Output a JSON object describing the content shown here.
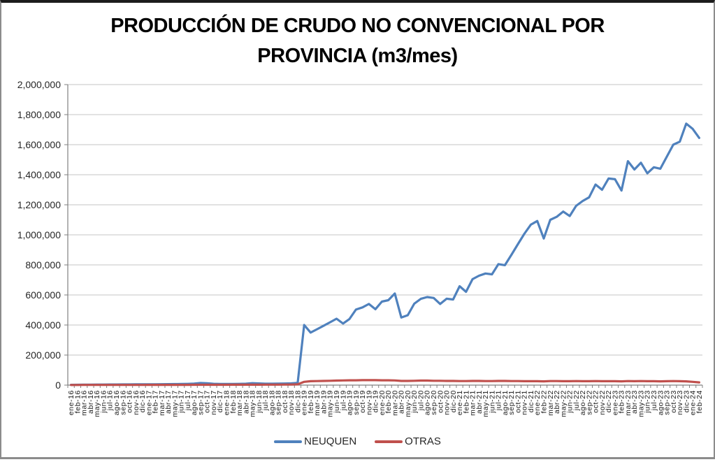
{
  "title": {
    "line1": "PRODUCCIÓN DE CRUDO NO CONVENCIONAL POR",
    "line2": "PROVINCIA (m3/mes)"
  },
  "colors": {
    "neuquen": "#4F81BD",
    "otras": "#C0504D",
    "gridline": "#C6C6C6",
    "axis": "#808080",
    "tick_text": "#1a1a1a",
    "y_label_text": "#262626"
  },
  "legend": {
    "items": [
      {
        "label": "NEUQUEN",
        "color": "#4F81BD"
      },
      {
        "label": "OTRAS",
        "color": "#C0504D"
      }
    ]
  },
  "y_axis": {
    "tick_labels": [
      "0",
      "200,000",
      "400,000",
      "600,000",
      "800,000",
      "1,000,000",
      "1,200,000",
      "1,400,000",
      "1,600,000",
      "1,800,000",
      "2,000,000"
    ],
    "min": 0,
    "max": 2000000,
    "step": 200000
  },
  "chart_data": {
    "type": "line",
    "title": "PRODUCCIÓN DE CRUDO NO CONVENCIONAL POR PROVINCIA (m3/mes)",
    "xlabel": "",
    "ylabel": "",
    "ylim": [
      0,
      2000000
    ],
    "grid": true,
    "legend_position": "bottom",
    "categories": [
      "ene-16",
      "feb-16",
      "mar-16",
      "abr-16",
      "may-16",
      "jun-16",
      "jul-16",
      "ago-16",
      "sep-16",
      "oct-16",
      "nov-16",
      "dic-16",
      "ene-17",
      "feb-17",
      "mar-17",
      "abr-17",
      "may-17",
      "jun-17",
      "jul-17",
      "ago-17",
      "sep-17",
      "oct-17",
      "nov-17",
      "dic-17",
      "ene-18",
      "feb-18",
      "mar-18",
      "abr-18",
      "may-18",
      "jun-18",
      "jul-18",
      "ago-18",
      "sep-18",
      "oct-18",
      "nov-18",
      "dic-18",
      "ene-19",
      "feb-19",
      "mar-19",
      "abr-19",
      "may-19",
      "jun-19",
      "jul-19",
      "ago-19",
      "sep-19",
      "oct-19",
      "nov-19",
      "dic-19",
      "ene-20",
      "feb-20",
      "mar-20",
      "abr-20",
      "may-20",
      "jun-20",
      "jul-20",
      "ago-20",
      "sep-20",
      "oct-20",
      "nov-20",
      "dic-20",
      "ene-21",
      "feb-21",
      "mar-21",
      "abr-21",
      "may-21",
      "jun-21",
      "jul-21",
      "ago-21",
      "sep-21",
      "oct-21",
      "nov-21",
      "dic-21",
      "ene-22",
      "feb-22",
      "mar-22",
      "abr-22",
      "may-22",
      "jun-22",
      "jul-22",
      "ago-22",
      "sep-22",
      "oct-22",
      "nov-22",
      "dic-22",
      "ene-23",
      "feb-23",
      "mar-23",
      "abr-23",
      "may-23",
      "jun-23",
      "jul-23",
      "ago-23",
      "sep-23",
      "oct-23",
      "nov-23",
      "dic-23",
      "ene-24",
      "feb-24"
    ],
    "series": [
      {
        "name": "NEUQUEN",
        "color": "#4F81BD",
        "values": [
          2000,
          2500,
          3000,
          3200,
          3500,
          3800,
          4000,
          4200,
          4500,
          4800,
          5000,
          5500,
          5500,
          5800,
          6000,
          6500,
          7000,
          7500,
          8500,
          10000,
          14000,
          12000,
          9000,
          7500,
          7500,
          8000,
          8500,
          9500,
          13000,
          11000,
          9500,
          9500,
          10000,
          10500,
          11500,
          15000,
          400000,
          350000,
          372000,
          395000,
          418000,
          442000,
          410000,
          440000,
          503000,
          517000,
          540000,
          505000,
          556000,
          565000,
          610000,
          450000,
          465000,
          542000,
          574000,
          586000,
          580000,
          540000,
          575000,
          570000,
          658000,
          621000,
          705000,
          728000,
          743000,
          737000,
          805000,
          798000,
          867000,
          937000,
          1007000,
          1068000,
          1092000,
          976000,
          1100000,
          1120000,
          1155000,
          1125000,
          1193000,
          1225000,
          1250000,
          1335000,
          1300000,
          1375000,
          1370000,
          1295000,
          1490000,
          1435000,
          1480000,
          1410000,
          1450000,
          1440000,
          1520000,
          1600000,
          1620000,
          1740000,
          1705000,
          1645000
        ]
      },
      {
        "name": "OTRAS",
        "color": "#C0504D",
        "values": [
          1000,
          1000,
          1200,
          1200,
          1300,
          1300,
          1400,
          1400,
          1500,
          1500,
          1600,
          1600,
          1700,
          1700,
          1800,
          1800,
          1900,
          2000,
          2000,
          2100,
          2200,
          2200,
          2300,
          2400,
          2500,
          2600,
          2700,
          2800,
          3000,
          3000,
          3200,
          3300,
          3400,
          3500,
          3800,
          5000,
          22000,
          26000,
          27000,
          28000,
          29000,
          30000,
          31000,
          32000,
          32000,
          33000,
          33000,
          33000,
          32000,
          32000,
          31000,
          28000,
          28000,
          29000,
          30000,
          30000,
          29000,
          29000,
          28000,
          28000,
          27000,
          27000,
          28000,
          28000,
          27000,
          27000,
          28000,
          28000,
          27000,
          27000,
          26000,
          26000,
          26000,
          25000,
          27000,
          27000,
          26000,
          26000,
          27000,
          26000,
          26000,
          27000,
          26000,
          26000,
          26000,
          25000,
          27000,
          26000,
          27000,
          26000,
          26000,
          25000,
          26000,
          27000,
          26000,
          25000,
          22000,
          18000
        ]
      }
    ]
  }
}
